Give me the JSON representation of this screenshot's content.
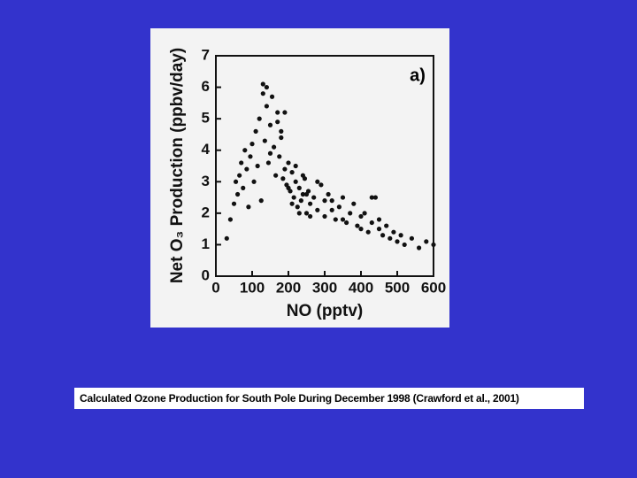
{
  "chart_data": {
    "type": "scatter",
    "annotation": "a)",
    "x_label": "NO (pptv)",
    "y_label": "Net O₃ Production (ppbv/day)",
    "caption": "Calculated Ozone Production for South Pole During December 1998 (Crawford et al., 2001)",
    "color": "#111111",
    "xlim": [
      0,
      600
    ],
    "xticks": [
      0,
      100,
      200,
      300,
      400,
      500,
      600
    ],
    "ylim": [
      0,
      7
    ],
    "yticks": [
      0,
      1,
      2,
      3,
      4,
      5,
      6,
      7
    ],
    "x": [
      30,
      40,
      50,
      55,
      60,
      65,
      70,
      75,
      80,
      85,
      90,
      95,
      100,
      105,
      110,
      115,
      120,
      125,
      130,
      135,
      140,
      145,
      150,
      155,
      160,
      165,
      170,
      175,
      180,
      185,
      190,
      195,
      200,
      205,
      210,
      215,
      220,
      225,
      230,
      235,
      240,
      245,
      250,
      255,
      260,
      270,
      280,
      290,
      300,
      310,
      320,
      330,
      340,
      350,
      360,
      370,
      380,
      390,
      400,
      410,
      420,
      430,
      440,
      450,
      460,
      470,
      480,
      490,
      500,
      510,
      520,
      540,
      560,
      580,
      600,
      130,
      140,
      150,
      170,
      180,
      190,
      200,
      210,
      220,
      230,
      240,
      250,
      260,
      280,
      300,
      320,
      350,
      400,
      430,
      450
    ],
    "values": [
      1.2,
      1.8,
      2.3,
      3.0,
      2.6,
      3.2,
      3.6,
      2.8,
      4.0,
      3.4,
      2.2,
      3.8,
      4.2,
      3.0,
      4.6,
      3.5,
      5.0,
      2.4,
      6.1,
      4.3,
      5.4,
      3.6,
      4.8,
      5.7,
      4.1,
      3.2,
      4.9,
      3.8,
      4.4,
      3.1,
      5.2,
      2.9,
      3.6,
      2.7,
      3.3,
      2.5,
      3.0,
      2.2,
      2.8,
      2.4,
      2.6,
      3.1,
      2.0,
      2.7,
      2.3,
      2.5,
      2.1,
      2.9,
      1.9,
      2.6,
      2.4,
      1.8,
      2.2,
      2.5,
      1.7,
      2.0,
      2.3,
      1.6,
      1.9,
      2.0,
      1.4,
      1.7,
      2.5,
      1.5,
      1.3,
      1.6,
      1.2,
      1.4,
      1.1,
      1.3,
      1.0,
      1.2,
      0.9,
      1.1,
      1.0,
      5.8,
      6.0,
      3.9,
      5.2,
      4.6,
      3.4,
      2.8,
      2.3,
      3.5,
      2.0,
      3.2,
      2.6,
      1.9,
      3.0,
      2.4,
      2.1,
      1.8,
      1.5,
      2.5,
      1.8
    ]
  }
}
